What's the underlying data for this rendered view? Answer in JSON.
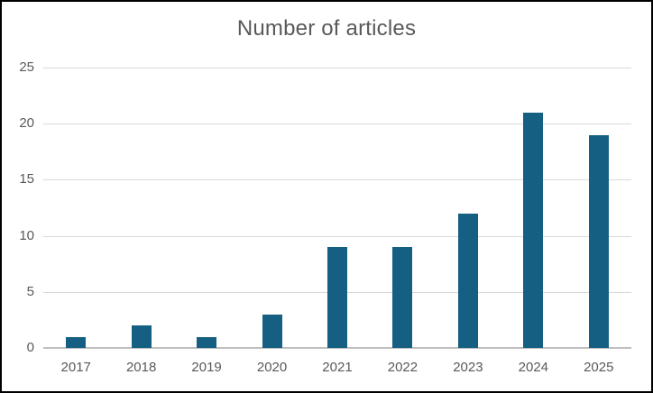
{
  "chart_data": {
    "type": "bar",
    "title": "Number of articles",
    "categories": [
      "2017",
      "2018",
      "2019",
      "2020",
      "2021",
      "2022",
      "2023",
      "2024",
      "2025"
    ],
    "values": [
      1,
      2,
      1,
      3,
      9,
      9,
      12,
      21,
      19
    ],
    "xlabel": "",
    "ylabel": "",
    "ylim": [
      0,
      25
    ],
    "yticks": [
      0,
      5,
      10,
      15,
      20,
      25
    ],
    "grid": true,
    "legend_position": "none",
    "bar_color": "#156082",
    "title_color": "#595959",
    "tick_label_color": "#595959",
    "gridline_color": "#d9d9d9",
    "axis_line_color": "#bfbfbf",
    "background_color": "#ffffff",
    "frame_border_color": "#000000"
  }
}
